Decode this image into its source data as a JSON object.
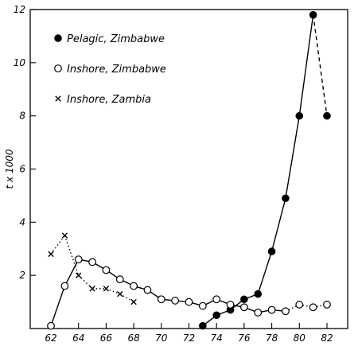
{
  "chart_data": {
    "type": "line",
    "xlabel": "",
    "ylabel": "t x 1000",
    "xlim": [
      60.5,
      83.5
    ],
    "ylim": [
      0,
      12
    ],
    "x_ticks": [
      62,
      64,
      66,
      68,
      70,
      72,
      74,
      76,
      78,
      80,
      82
    ],
    "y_ticks": [
      2,
      4,
      6,
      8,
      10,
      12
    ],
    "legend_position": "top-left",
    "series": [
      {
        "name": "Pelagic, Zimbabwe",
        "marker": "filled-circle",
        "points": [
          [
            73,
            0.1
          ],
          [
            74,
            0.5
          ],
          [
            75,
            0.7
          ],
          [
            76,
            1.1
          ],
          [
            77,
            1.3
          ],
          [
            78,
            2.9
          ],
          [
            79,
            4.9
          ],
          [
            80,
            8.0
          ],
          [
            81,
            11.8
          ],
          [
            82,
            8.0
          ]
        ],
        "line_style": "solid",
        "last_segment_style": "dashed"
      },
      {
        "name": "Inshore, Zimbabwe",
        "marker": "open-circle",
        "points": [
          [
            62,
            0.1
          ],
          [
            63,
            1.6
          ],
          [
            64,
            2.6
          ],
          [
            65,
            2.5
          ],
          [
            66,
            2.2
          ],
          [
            67,
            1.85
          ],
          [
            68,
            1.6
          ],
          [
            69,
            1.45
          ],
          [
            70,
            1.1
          ],
          [
            71,
            1.05
          ],
          [
            72,
            1.0
          ],
          [
            73,
            0.85
          ],
          [
            74,
            1.1
          ],
          [
            75,
            0.9
          ],
          [
            76,
            0.8
          ],
          [
            77,
            0.6
          ],
          [
            78,
            0.7
          ],
          [
            79,
            0.65
          ],
          [
            80,
            0.9
          ],
          [
            81,
            0.8
          ],
          [
            82,
            0.9
          ]
        ],
        "line_style": "solid",
        "dotted_after": 79
      },
      {
        "name": "Inshore, Zambia",
        "marker": "cross",
        "points": [
          [
            62,
            2.8
          ],
          [
            63,
            3.5
          ],
          [
            64,
            2.0
          ],
          [
            65,
            1.5
          ],
          [
            66,
            1.5
          ],
          [
            67,
            1.3
          ],
          [
            68,
            1.0
          ]
        ],
        "line_style": "dotted"
      }
    ]
  }
}
